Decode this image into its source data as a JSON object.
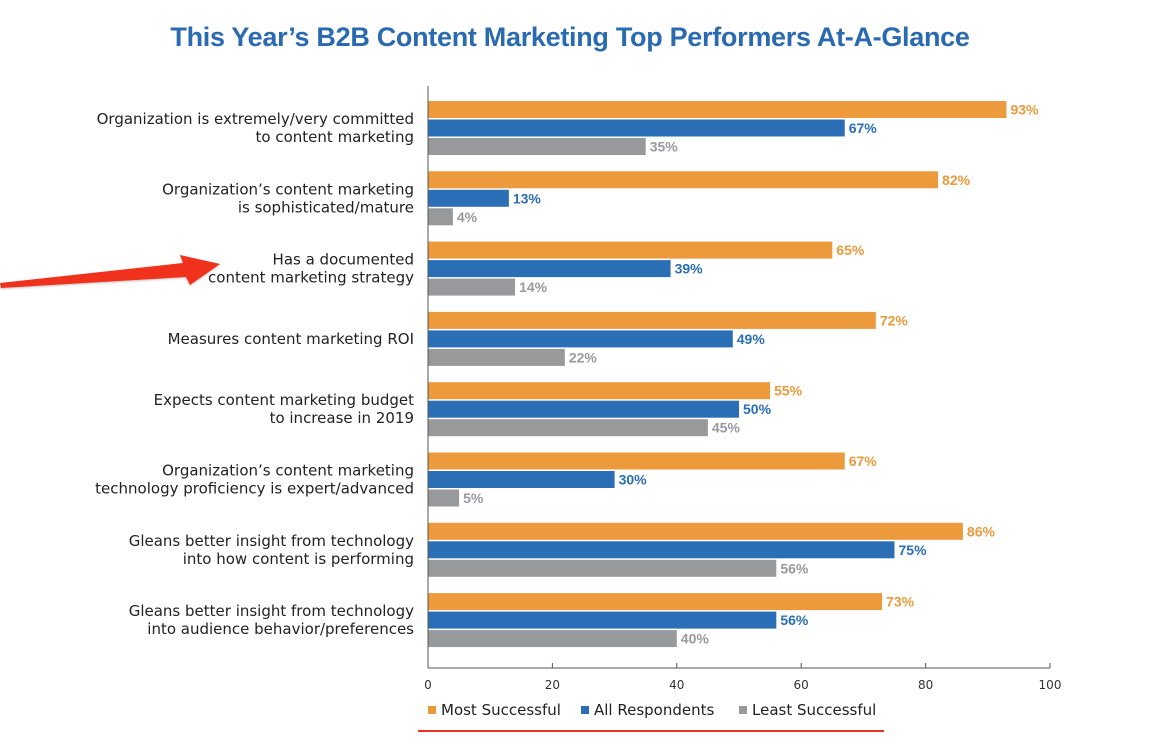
{
  "chart_data": {
    "type": "bar",
    "orientation": "horizontal",
    "title": "This Year’s B2B Content Marketing Top Performers At-A-Glance",
    "categories": [
      [
        "Organization is extremely/very committed",
        "to content marketing"
      ],
      [
        "Organization’s content marketing",
        "is sophisticated/mature"
      ],
      [
        "Has a documented",
        "content marketing strategy"
      ],
      [
        "Measures content marketing ROI"
      ],
      [
        "Expects content marketing budget",
        "to increase in 2019"
      ],
      [
        "Organization’s content marketing",
        "technology proficiency is expert/advanced"
      ],
      [
        "Gleans better insight from technology",
        "into how content is performing"
      ],
      [
        "Gleans better insight from technology",
        "into audience behavior/preferences"
      ]
    ],
    "series": [
      {
        "name": "Most Successful",
        "color": "#ec9a3b",
        "values": [
          93,
          82,
          65,
          72,
          55,
          67,
          86,
          73
        ]
      },
      {
        "name": "All Respondents",
        "color": "#2a6fb6",
        "values": [
          67,
          13,
          39,
          49,
          50,
          30,
          75,
          56
        ]
      },
      {
        "name": "Least Successful",
        "color": "#98999b",
        "values": [
          35,
          4,
          14,
          22,
          45,
          5,
          56,
          40
        ]
      }
    ],
    "value_suffix": "%",
    "xlim": [
      0,
      100
    ],
    "xticks": [
      "0",
      "20",
      "40",
      "60",
      "80",
      "100"
    ],
    "grid": false,
    "legend_position": "bottom-center"
  },
  "annotations": {
    "arrow_color": "#f0311b",
    "arrow_target": "Has a documented content marketing strategy",
    "legend_underline_color": "#f0311b"
  }
}
